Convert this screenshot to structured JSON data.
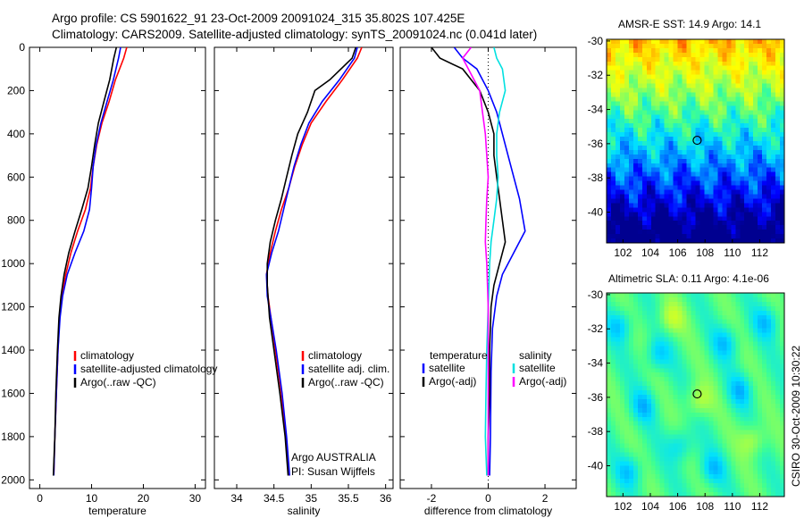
{
  "titles": {
    "line1": "Argo profile: CS 5901622_91 23-Oct-2009 20091024_315 35.802S 107.425E",
    "line2": "Climatology: CARS2009. Satellite-adjusted climatology: synTS_20091024.nc (0.041d later)"
  },
  "side_text": "CSIRO 30-Oct-2009 10:30:22",
  "chart_data": [
    {
      "type": "line",
      "panel": "temperature",
      "xlabel": "temperature",
      "ylabel": "",
      "xlim": [
        -2,
        32
      ],
      "ylim": [
        2040,
        0
      ],
      "y_reversed": true,
      "xticks": [
        0,
        10,
        20,
        30
      ],
      "yticks": [
        0,
        200,
        400,
        600,
        800,
        1000,
        1200,
        1400,
        1600,
        1800,
        2000
      ],
      "legend_position": "lower-middle",
      "series": [
        {
          "name": "climatology",
          "color": "#ff0000",
          "points": [
            [
              16.8,
              0
            ],
            [
              16.2,
              50
            ],
            [
              14.6,
              150
            ],
            [
              13.4,
              250
            ],
            [
              12.0,
              350
            ],
            [
              11.0,
              450
            ],
            [
              10.3,
              550
            ],
            [
              9.8,
              650
            ],
            [
              8.8,
              750
            ],
            [
              7.3,
              850
            ],
            [
              6.0,
              950
            ],
            [
              5.0,
              1050
            ],
            [
              4.3,
              1150
            ],
            [
              3.8,
              1250
            ],
            [
              3.5,
              1400
            ],
            [
              3.2,
              1600
            ],
            [
              2.9,
              1800
            ],
            [
              2.7,
              1980
            ]
          ]
        },
        {
          "name": "satellite-adjusted climatology",
          "color": "#0000ff",
          "points": [
            [
              15.6,
              0
            ],
            [
              15.2,
              50
            ],
            [
              14.2,
              150
            ],
            [
              13.0,
              250
            ],
            [
              11.8,
              350
            ],
            [
              10.9,
              450
            ],
            [
              10.3,
              550
            ],
            [
              10.0,
              650
            ],
            [
              9.6,
              750
            ],
            [
              8.5,
              850
            ],
            [
              6.8,
              950
            ],
            [
              5.3,
              1050
            ],
            [
              4.4,
              1150
            ],
            [
              3.9,
              1250
            ],
            [
              3.5,
              1400
            ],
            [
              3.2,
              1600
            ],
            [
              2.9,
              1800
            ],
            [
              2.7,
              1980
            ]
          ]
        },
        {
          "name": "Argo(..raw -QC)",
          "color": "#000000",
          "points": [
            [
              14.8,
              0
            ],
            [
              14.3,
              50
            ],
            [
              13.5,
              150
            ],
            [
              12.4,
              250
            ],
            [
              11.3,
              350
            ],
            [
              10.6,
              450
            ],
            [
              10.0,
              550
            ],
            [
              9.3,
              650
            ],
            [
              8.1,
              750
            ],
            [
              6.8,
              850
            ],
            [
              5.6,
              950
            ],
            [
              4.7,
              1050
            ],
            [
              4.1,
              1150
            ],
            [
              3.7,
              1250
            ],
            [
              3.4,
              1400
            ],
            [
              3.1,
              1600
            ],
            [
              2.9,
              1800
            ],
            [
              2.6,
              1980
            ]
          ]
        }
      ]
    },
    {
      "type": "line",
      "panel": "salinity",
      "xlabel": "salinity",
      "ylabel": "",
      "xlim": [
        33.7,
        36.1
      ],
      "ylim": [
        2040,
        0
      ],
      "y_reversed": true,
      "xticks": [
        34,
        34.5,
        35,
        35.5,
        36
      ],
      "xtick_labels": [
        "34",
        "34.5",
        "35",
        "35.5",
        "36"
      ],
      "legend_position": "lower-right",
      "series": [
        {
          "name": "climatology",
          "color": "#ff0000",
          "points": [
            [
              35.68,
              0
            ],
            [
              35.62,
              50
            ],
            [
              35.42,
              150
            ],
            [
              35.2,
              250
            ],
            [
              35.0,
              350
            ],
            [
              34.88,
              450
            ],
            [
              34.78,
              550
            ],
            [
              34.7,
              650
            ],
            [
              34.6,
              750
            ],
            [
              34.52,
              850
            ],
            [
              34.45,
              950
            ],
            [
              34.4,
              1050
            ],
            [
              34.42,
              1150
            ],
            [
              34.46,
              1250
            ],
            [
              34.52,
              1400
            ],
            [
              34.6,
              1600
            ],
            [
              34.66,
              1800
            ],
            [
              34.7,
              1980
            ]
          ]
        },
        {
          "name": "satellite adj. clim.",
          "color": "#0000ff",
          "points": [
            [
              35.62,
              0
            ],
            [
              35.58,
              50
            ],
            [
              35.38,
              150
            ],
            [
              35.15,
              250
            ],
            [
              34.97,
              350
            ],
            [
              34.86,
              450
            ],
            [
              34.77,
              550
            ],
            [
              34.7,
              650
            ],
            [
              34.63,
              750
            ],
            [
              34.56,
              850
            ],
            [
              34.47,
              950
            ],
            [
              34.4,
              1050
            ],
            [
              34.41,
              1150
            ],
            [
              34.46,
              1250
            ],
            [
              34.53,
              1400
            ],
            [
              34.61,
              1600
            ],
            [
              34.67,
              1800
            ],
            [
              34.71,
              1980
            ]
          ]
        },
        {
          "name": "Argo(..raw -QC)",
          "color": "#000000",
          "points": [
            [
              35.6,
              0
            ],
            [
              35.55,
              50
            ],
            [
              35.25,
              150
            ],
            [
              35.05,
              200
            ],
            [
              34.95,
              300
            ],
            [
              34.82,
              400
            ],
            [
              34.74,
              500
            ],
            [
              34.67,
              600
            ],
            [
              34.6,
              700
            ],
            [
              34.52,
              800
            ],
            [
              34.45,
              900
            ],
            [
              34.41,
              1000
            ],
            [
              34.41,
              1100
            ],
            [
              34.44,
              1250
            ],
            [
              34.5,
              1400
            ],
            [
              34.58,
              1600
            ],
            [
              34.65,
              1800
            ],
            [
              34.69,
              1980
            ]
          ]
        }
      ]
    },
    {
      "type": "line",
      "panel": "difference",
      "xlabel": "difference from climatology",
      "ylabel": "",
      "xlim": [
        -3.1,
        3.1
      ],
      "ylim": [
        2040,
        0
      ],
      "y_reversed": true,
      "xticks": [
        -2,
        0,
        2
      ],
      "zero_line": true,
      "legend_position": "lower",
      "legend_headers": [
        "temperature",
        "salinity"
      ],
      "series": [
        {
          "name": "satellite",
          "group": "temperature",
          "color": "#0000ff",
          "points": [
            [
              -1.2,
              0
            ],
            [
              -0.9,
              50
            ],
            [
              -0.4,
              100
            ],
            [
              0.0,
              200
            ],
            [
              0.3,
              300
            ],
            [
              0.5,
              400
            ],
            [
              0.7,
              500
            ],
            [
              0.9,
              600
            ],
            [
              1.1,
              700
            ],
            [
              1.3,
              850
            ],
            [
              0.9,
              950
            ],
            [
              0.5,
              1050
            ],
            [
              0.3,
              1150
            ],
            [
              0.15,
              1300
            ],
            [
              0.1,
              1500
            ],
            [
              0.08,
              1800
            ],
            [
              0.05,
              1980
            ]
          ]
        },
        {
          "name": "Argo(-adj)",
          "group": "temperature",
          "color": "#000000",
          "points": [
            [
              -2.0,
              0
            ],
            [
              -1.7,
              50
            ],
            [
              -0.9,
              100
            ],
            [
              -0.6,
              150
            ],
            [
              -0.3,
              200
            ],
            [
              0.0,
              300
            ],
            [
              0.2,
              400
            ],
            [
              0.2,
              500
            ],
            [
              0.3,
              600
            ],
            [
              0.4,
              700
            ],
            [
              0.5,
              800
            ],
            [
              0.6,
              900
            ],
            [
              0.4,
              1000
            ],
            [
              0.2,
              1100
            ],
            [
              0.1,
              1200
            ],
            [
              0.05,
              1400
            ],
            [
              0.05,
              1600
            ],
            [
              0.0,
              1800
            ],
            [
              0.0,
              1980
            ]
          ]
        },
        {
          "name": "satellite",
          "group": "salinity",
          "color": "#00e0e0",
          "points": [
            [
              0.2,
              0
            ],
            [
              0.3,
              50
            ],
            [
              0.5,
              100
            ],
            [
              0.6,
              200
            ],
            [
              0.4,
              300
            ],
            [
              0.3,
              400
            ],
            [
              0.3,
              500
            ],
            [
              0.35,
              600
            ],
            [
              0.3,
              700
            ],
            [
              0.2,
              800
            ],
            [
              0.1,
              900
            ],
            [
              0.05,
              1000
            ],
            [
              0.0,
              1200
            ],
            [
              -0.05,
              1400
            ],
            [
              -0.08,
              1600
            ],
            [
              -0.1,
              1800
            ],
            [
              -0.05,
              1980
            ]
          ]
        },
        {
          "name": "Argo(-adj)",
          "group": "salinity",
          "color": "#ff00ff",
          "points": [
            [
              -0.6,
              0
            ],
            [
              -0.9,
              50
            ],
            [
              -0.7,
              100
            ],
            [
              -0.3,
              200
            ],
            [
              -0.2,
              300
            ],
            [
              -0.1,
              400
            ],
            [
              -0.05,
              500
            ],
            [
              0.0,
              600
            ],
            [
              -0.05,
              700
            ],
            [
              -0.08,
              800
            ],
            [
              -0.1,
              900
            ],
            [
              -0.05,
              1000
            ],
            [
              0.0,
              1200
            ],
            [
              0.0,
              1400
            ],
            [
              0.0,
              1600
            ],
            [
              0.0,
              1800
            ],
            [
              0.0,
              1980
            ]
          ]
        }
      ]
    },
    {
      "type": "heatmap",
      "panel": "sst_map",
      "title": "AMSR-E SST: 14.9 Argo: 14.1",
      "xlim": [
        100.8,
        113.8
      ],
      "ylim": [
        -41.8,
        -29.9
      ],
      "xticks": [
        102,
        104,
        106,
        108,
        110,
        112
      ],
      "yticks": [
        -30,
        -32,
        -34,
        -36,
        -38,
        -40
      ],
      "marker": {
        "lon": 107.425,
        "lat": -35.802
      },
      "field_description": "warm (red/yellow) in north, green band near 34-36S, cool blue to dark blue in south",
      "colormap": [
        "#000090",
        "#0000ff",
        "#0080ff",
        "#00e0ff",
        "#40ff90",
        "#b0ff40",
        "#ffff00",
        "#ffb000",
        "#ff4000"
      ]
    },
    {
      "type": "heatmap",
      "panel": "sla_map",
      "title": "Altimetric SLA: 0.11 Argo: 4.1e-06",
      "xlim": [
        100.8,
        113.8
      ],
      "ylim": [
        -41.8,
        -29.9
      ],
      "xticks": [
        102,
        104,
        106,
        108,
        110,
        112
      ],
      "yticks": [
        -30,
        -32,
        -34,
        -36,
        -38,
        -40
      ],
      "marker": {
        "lon": 107.425,
        "lat": -35.802
      },
      "field_description": "mostly green/yellow-green with scattered teal eddies and a yellow patch near the float",
      "colormap": [
        "#000090",
        "#0000ff",
        "#0080ff",
        "#00e0ff",
        "#40ff90",
        "#b0ff40",
        "#ffff00",
        "#ffb000",
        "#ff4000"
      ]
    }
  ]
}
